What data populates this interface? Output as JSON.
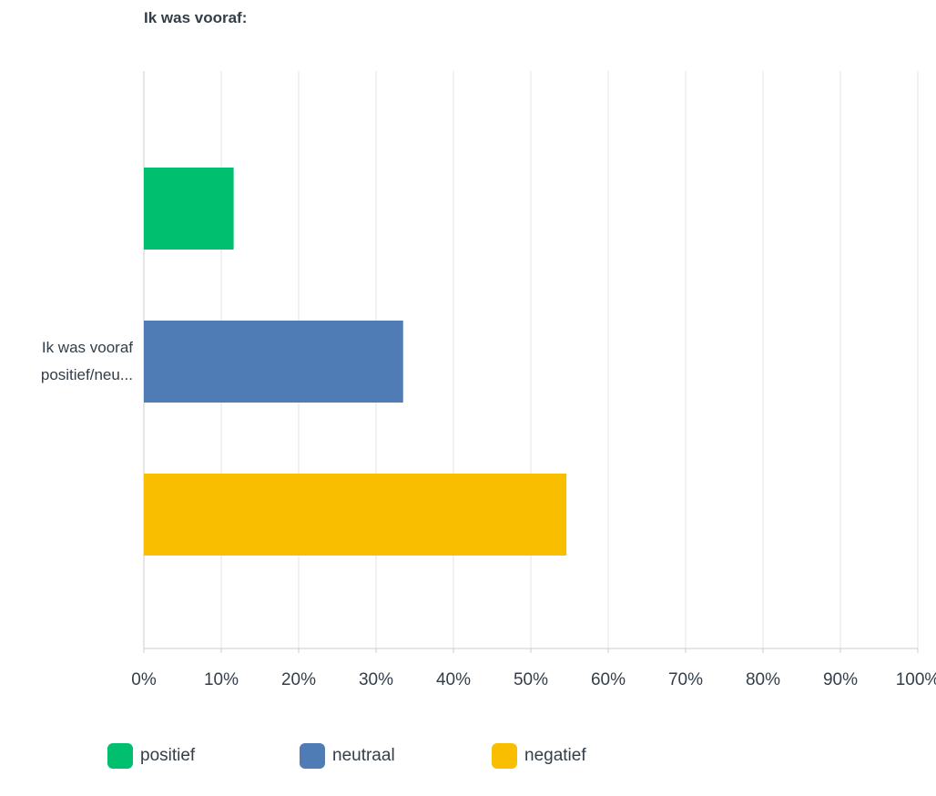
{
  "chart_data": {
    "type": "bar",
    "orientation": "horizontal",
    "title": "Ik was vooraf:",
    "categories": [
      "Ik was vooraf positief/neu..."
    ],
    "category_label_lines": [
      "Ik was vooraf",
      "positief/neu..."
    ],
    "series": [
      {
        "name": "positief",
        "values": [
          11.6
        ],
        "color": "#00bf6f"
      },
      {
        "name": "neutraal",
        "values": [
          33.5
        ],
        "color": "#507cb6"
      },
      {
        "name": "negatief",
        "values": [
          54.6
        ],
        "color": "#f9be00"
      }
    ],
    "x_ticks": [
      "0%",
      "10%",
      "20%",
      "30%",
      "40%",
      "50%",
      "60%",
      "70%",
      "80%",
      "90%",
      "100%"
    ],
    "xlim": [
      0,
      100
    ],
    "unit": "%",
    "grid": true,
    "legend_position": "bottom"
  }
}
